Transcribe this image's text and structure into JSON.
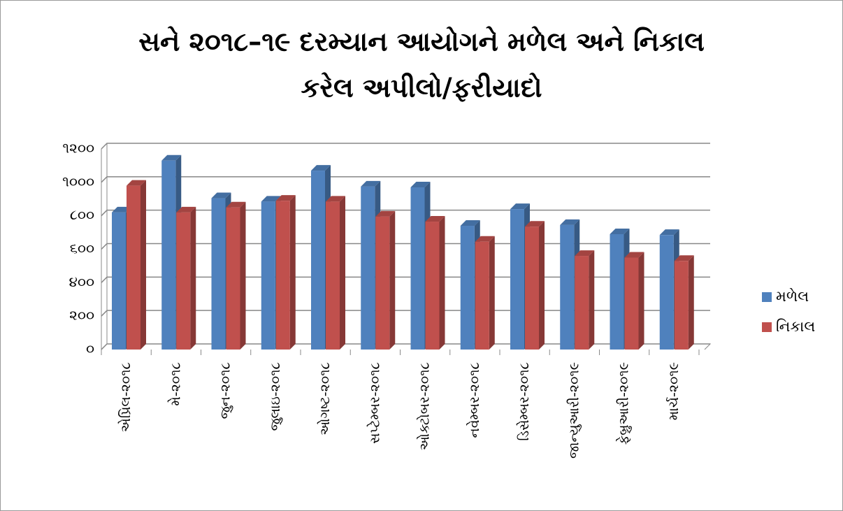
{
  "chart_data": {
    "type": "bar3d",
    "title": [
      "સને ૨૦૧૮–૧૯ દરમ્યાન આયોગને મળેલ અને નિકાલ",
      "કરેલ અપીલો/ફરીયાદો"
    ],
    "categories": [
      "એપ્રિલ-૨૦૧૮",
      "મે-૨૦૧૮",
      "જુન-૨૦૧૮",
      "જુલાઇ-૨૦૧૮",
      "ઓગષ્ટ-૨૦૧૮",
      "સપ્ટેમ્બર-૨૦૧૮",
      "ઓક્ટોબર-૨૦૧૮",
      "નવેમ્બર-૨૦૧૮",
      "ડિસેમ્બર-૨૦૧૮",
      "જાન્યુઆરી-૨૦૧૯",
      "ફેબ્રુઆરી-૨૦૧૯",
      "માર્ચ-૨૦૧૯"
    ],
    "series": [
      {
        "name": "મળેલ",
        "color": "#4f81bd",
        "values": [
          820,
          1130,
          905,
          885,
          1070,
          975,
          970,
          740,
          840,
          745,
          690,
          685
        ]
      },
      {
        "name": "નિકાલ",
        "color": "#c0504d",
        "values": [
          980,
          820,
          850,
          890,
          885,
          795,
          765,
          645,
          735,
          560,
          550,
          530
        ]
      }
    ],
    "ylim": [
      0,
      1200
    ],
    "yticks": [
      {
        "value": 0,
        "label": "૦"
      },
      {
        "value": 200,
        "label": "૨૦૦"
      },
      {
        "value": 400,
        "label": "૪૦૦"
      },
      {
        "value": 600,
        "label": "૬૦૦"
      },
      {
        "value": 800,
        "label": "૮૦૦"
      },
      {
        "value": 1000,
        "label": "૧૦૦૦"
      },
      {
        "value": 1200,
        "label": "૧૨૦૦"
      }
    ],
    "grid": true,
    "legend": "right"
  }
}
